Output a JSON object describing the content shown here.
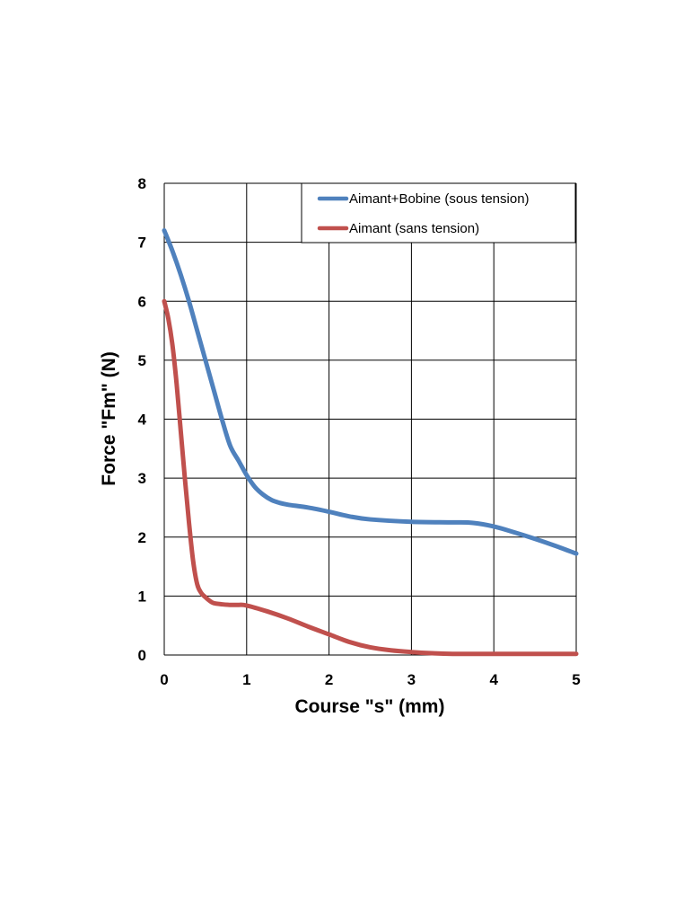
{
  "chart_data": {
    "type": "line",
    "xlabel": "Course \"s\" (mm)",
    "ylabel": "Force \"Fm\" (N)",
    "xlim": [
      0,
      5
    ],
    "ylim": [
      0,
      8
    ],
    "x_ticks": [
      "0",
      "1",
      "2",
      "3",
      "4",
      "5"
    ],
    "y_ticks": [
      "0",
      "1",
      "2",
      "3",
      "4",
      "5",
      "6",
      "7",
      "8"
    ],
    "grid": true,
    "legend_position": "top-right",
    "series": [
      {
        "name": "Aimant+Bobine (sous tension)",
        "color": "#4F81BD",
        "x": [
          0,
          0.1,
          0.2,
          0.3,
          0.4,
          0.5,
          0.6,
          0.7,
          0.8,
          0.9,
          1.0,
          1.1,
          1.2,
          1.3,
          1.4,
          1.5,
          1.75,
          2.0,
          2.25,
          2.5,
          3.0,
          3.5,
          3.75,
          4.0,
          4.25,
          4.5,
          4.75,
          5.0
        ],
        "y": [
          7.2,
          6.85,
          6.45,
          6.0,
          5.5,
          5.0,
          4.5,
          4.0,
          3.55,
          3.3,
          3.05,
          2.85,
          2.72,
          2.63,
          2.58,
          2.55,
          2.5,
          2.43,
          2.35,
          2.3,
          2.26,
          2.25,
          2.24,
          2.18,
          2.08,
          1.97,
          1.85,
          1.72
        ]
      },
      {
        "name": "Aimant (sans tension)",
        "color": "#C0504D",
        "x": [
          0,
          0.05,
          0.1,
          0.15,
          0.2,
          0.25,
          0.3,
          0.35,
          0.4,
          0.45,
          0.5,
          0.55,
          0.6,
          0.7,
          0.8,
          0.9,
          1.0,
          1.25,
          1.5,
          1.75,
          2.0,
          2.25,
          2.5,
          2.75,
          3.0,
          3.25,
          3.5,
          4.0,
          4.5,
          5.0
        ],
        "y": [
          6.0,
          5.7,
          5.25,
          4.6,
          3.8,
          3.0,
          2.25,
          1.6,
          1.2,
          1.05,
          0.98,
          0.92,
          0.88,
          0.86,
          0.85,
          0.85,
          0.84,
          0.74,
          0.62,
          0.48,
          0.35,
          0.22,
          0.13,
          0.08,
          0.05,
          0.03,
          0.02,
          0.02,
          0.02,
          0.02
        ]
      }
    ]
  }
}
